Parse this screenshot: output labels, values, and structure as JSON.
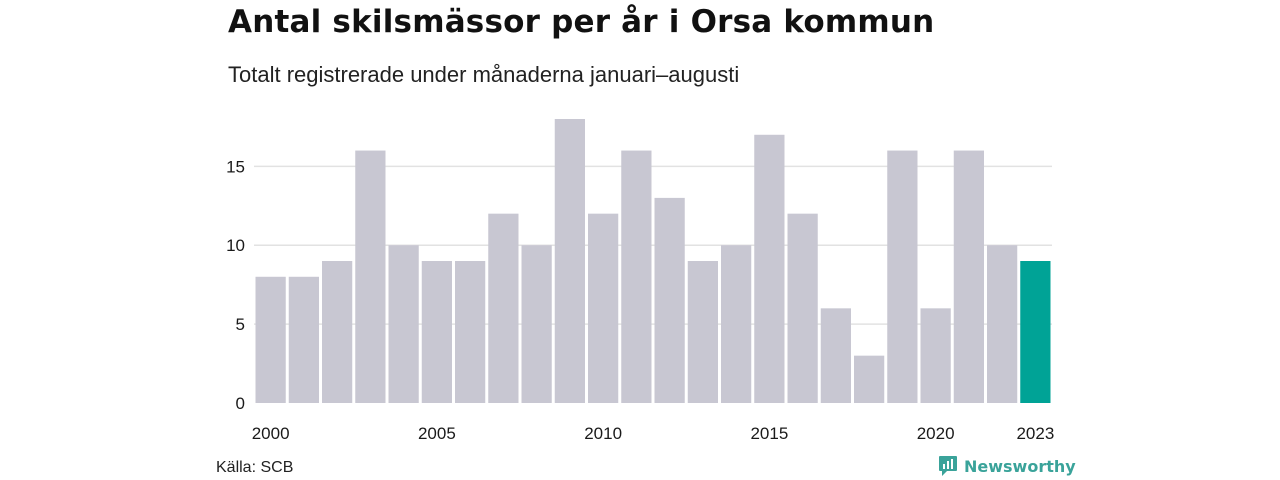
{
  "header": {
    "title": "Antal skilsmässor per år i Orsa kommun",
    "subtitle": "Totalt registrerade under månaderna januari–augusti"
  },
  "footer": {
    "source": "Källa: SCB",
    "brand": "Newsworthy"
  },
  "colors": {
    "bar": "#c8c7d2",
    "highlight": "#00a396",
    "grid": "#e2e2e2",
    "brand": "#3aa39a"
  },
  "chart_data": {
    "type": "bar",
    "categories": [
      "2000",
      "2001",
      "2002",
      "2003",
      "2004",
      "2005",
      "2006",
      "2007",
      "2008",
      "2009",
      "2010",
      "2011",
      "2012",
      "2013",
      "2014",
      "2015",
      "2016",
      "2017",
      "2018",
      "2019",
      "2020",
      "2021",
      "2022",
      "2023"
    ],
    "values": [
      8,
      8,
      9,
      16,
      10,
      9,
      9,
      12,
      10,
      18,
      12,
      16,
      13,
      9,
      10,
      17,
      12,
      6,
      3,
      16,
      6,
      16,
      10,
      9
    ],
    "highlight_category": "2023",
    "x_tick_labels": [
      "2000",
      "2005",
      "2010",
      "2015",
      "2020",
      "2023"
    ],
    "y_ticks": [
      0,
      5,
      10,
      15
    ],
    "ylim": [
      0,
      18
    ],
    "title": "Antal skilsmässor per år i Orsa kommun",
    "subtitle": "Totalt registrerade under månaderna januari–augusti",
    "xlabel": "",
    "ylabel": "",
    "grid": true,
    "legend": "none"
  }
}
